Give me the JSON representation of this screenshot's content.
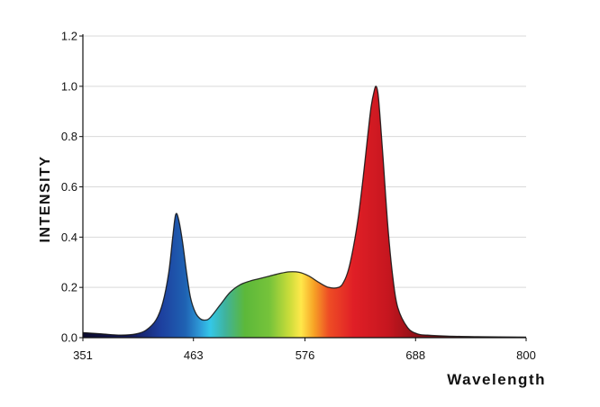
{
  "chart_data": {
    "type": "area",
    "xlabel": "Wavelength",
    "ylabel": "INTENSITY",
    "xlim": [
      351,
      800
    ],
    "ylim": [
      0,
      1.2
    ],
    "x_ticks": [
      351,
      463,
      576,
      688,
      800
    ],
    "x_tick_labels": [
      "351",
      "463",
      "576",
      "688",
      "800"
    ],
    "y_ticks": [
      0,
      0.2,
      0.4,
      0.6,
      0.8,
      1.0,
      1.2
    ],
    "y_tick_labels": [
      "0.0",
      "0.2",
      "0.4",
      "0.6",
      "0.8",
      "1.0",
      "1.2"
    ],
    "grid": "horizontal",
    "fill": "visible-spectrum gradient",
    "series": [
      {
        "x": [
          351,
          370,
          390,
          405,
          415,
          425,
          432,
          438,
          442,
          445,
          448,
          452,
          456,
          460,
          465,
          470,
          475,
          480,
          490,
          500,
          510,
          520,
          530,
          540,
          550,
          560,
          570,
          580,
          590,
          600,
          610,
          615,
          620,
          625,
          630,
          635,
          640,
          643,
          646,
          648,
          650,
          652,
          655,
          660,
          665,
          670,
          680,
          690,
          700,
          720,
          750,
          800
        ],
        "y": [
          0.02,
          0.015,
          0.01,
          0.015,
          0.03,
          0.07,
          0.14,
          0.26,
          0.4,
          0.49,
          0.47,
          0.38,
          0.26,
          0.16,
          0.1,
          0.075,
          0.07,
          0.08,
          0.13,
          0.18,
          0.21,
          0.225,
          0.235,
          0.245,
          0.255,
          0.262,
          0.26,
          0.245,
          0.22,
          0.2,
          0.2,
          0.22,
          0.27,
          0.36,
          0.48,
          0.64,
          0.82,
          0.92,
          0.98,
          1.0,
          0.97,
          0.88,
          0.72,
          0.44,
          0.24,
          0.12,
          0.04,
          0.015,
          0.01,
          0.006,
          0.004,
          0.002
        ]
      }
    ]
  },
  "colors": {
    "spectrum_stops": [
      {
        "nm": 351,
        "color": "#0b0b2e"
      },
      {
        "nm": 400,
        "color": "#151a5c"
      },
      {
        "nm": 430,
        "color": "#1d3f9e"
      },
      {
        "nm": 455,
        "color": "#1f62b3"
      },
      {
        "nm": 470,
        "color": "#2e9bd8"
      },
      {
        "nm": 480,
        "color": "#34c7e8"
      },
      {
        "nm": 495,
        "color": "#3fb39e"
      },
      {
        "nm": 515,
        "color": "#5cb83a"
      },
      {
        "nm": 540,
        "color": "#76c33a"
      },
      {
        "nm": 560,
        "color": "#c9dc3a"
      },
      {
        "nm": 572,
        "color": "#ffe84a"
      },
      {
        "nm": 585,
        "color": "#f7a326"
      },
      {
        "nm": 600,
        "color": "#ee4d25"
      },
      {
        "nm": 625,
        "color": "#e01f26"
      },
      {
        "nm": 660,
        "color": "#c6161f"
      },
      {
        "nm": 700,
        "color": "#7a0d13"
      },
      {
        "nm": 800,
        "color": "#2a0709"
      }
    ],
    "outline": "#111111",
    "grid": "#d9d9d9",
    "axis": "#111111"
  }
}
